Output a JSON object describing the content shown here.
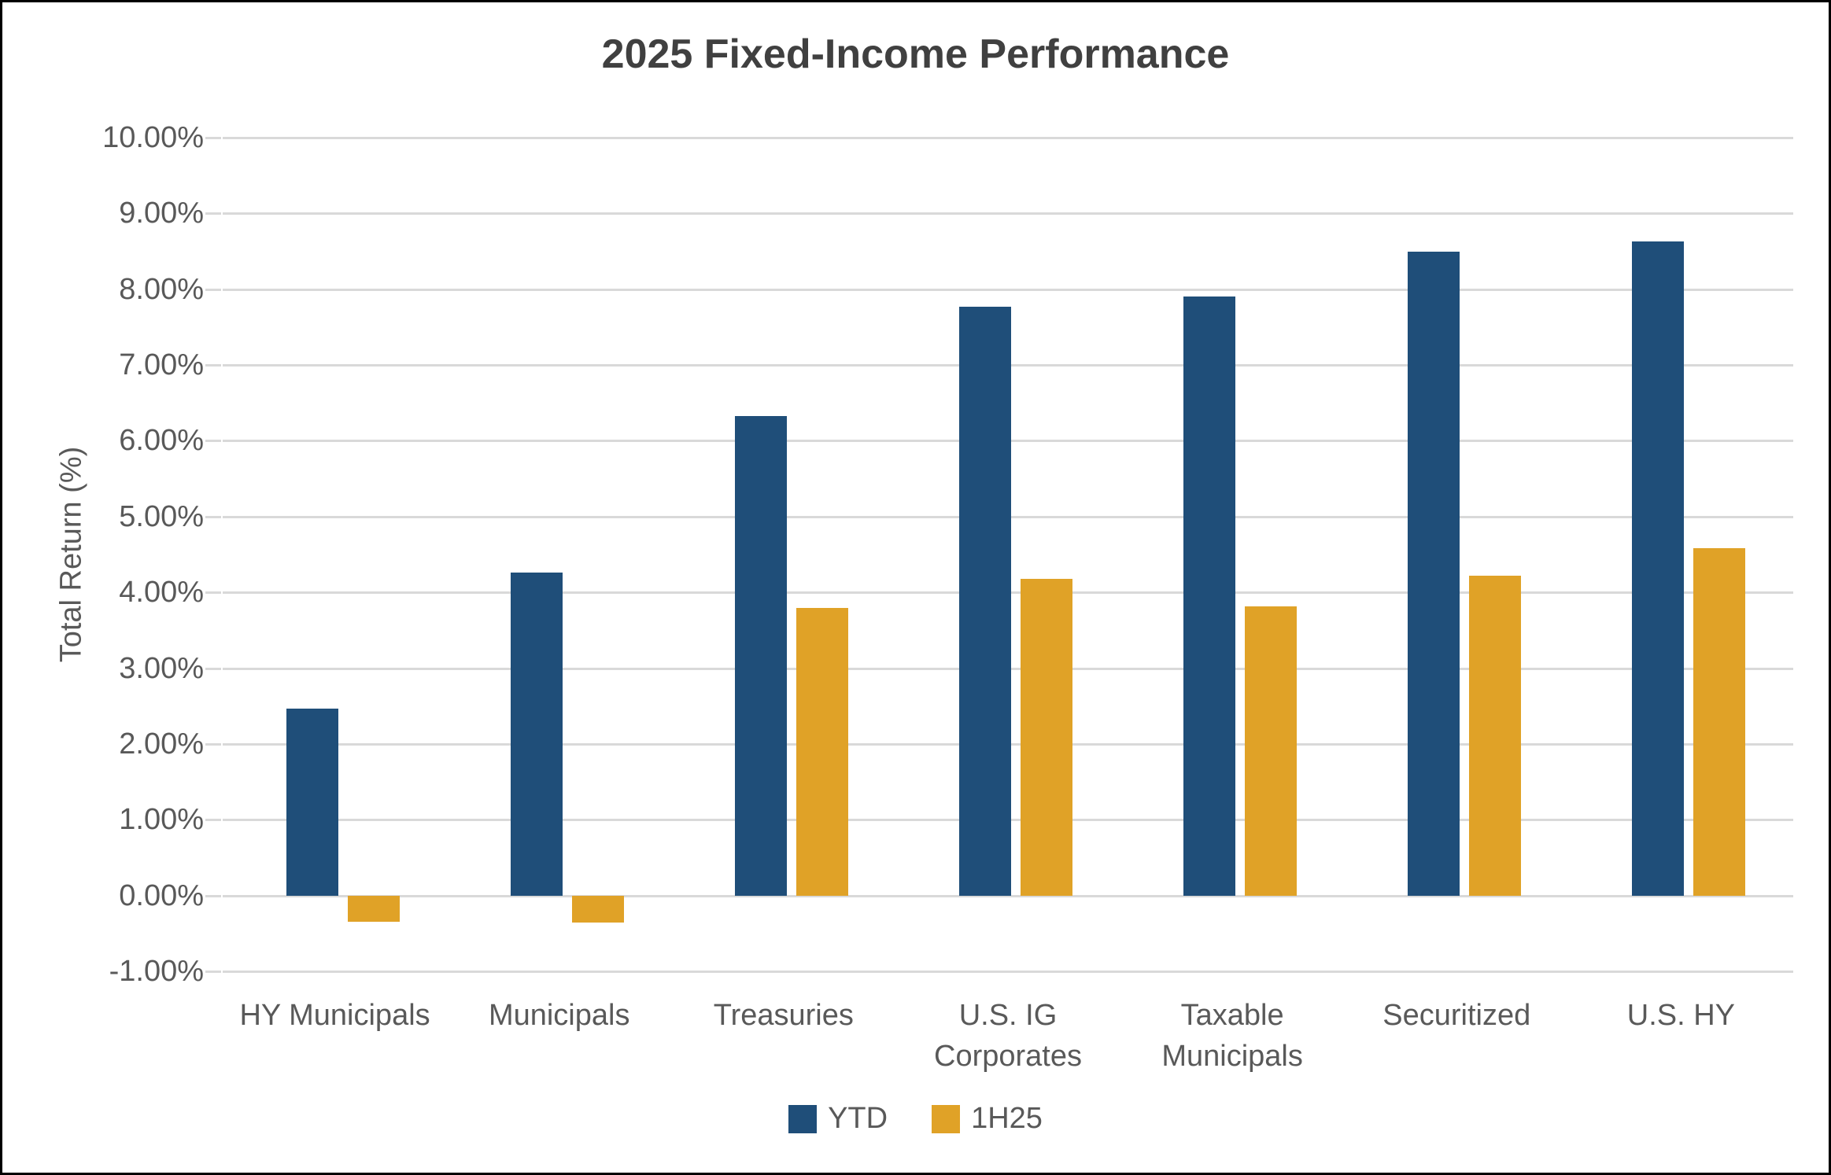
{
  "chart_data": {
    "type": "bar",
    "title": "2025 Fixed-Income Performance",
    "ylabel": "Total Return (%)",
    "xlabel": "",
    "ylim": [
      -1,
      10
    ],
    "ytick_step": 1,
    "ytick_format": "percent_2dp",
    "grid": true,
    "legend_position": "bottom",
    "categories": [
      "HY Municipals",
      "Municipals",
      "Treasuries",
      "U.S. IG Corporates",
      "Taxable Municipals",
      "Securitized",
      "U.S. HY"
    ],
    "category_label_lines": [
      [
        "HY Municipals"
      ],
      [
        "Municipals"
      ],
      [
        "Treasuries"
      ],
      [
        "U.S. IG",
        "Corporates"
      ],
      [
        "Taxable",
        "Municipals"
      ],
      [
        "Securitized"
      ],
      [
        "U.S. HY"
      ]
    ],
    "series": [
      {
        "name": "YTD",
        "color": "#1F4E79",
        "values": [
          2.47,
          4.26,
          6.33,
          7.77,
          7.9,
          8.5,
          8.63
        ]
      },
      {
        "name": "1H25",
        "color": "#E0A227",
        "values": [
          -0.35,
          -0.36,
          3.79,
          4.18,
          3.81,
          4.22,
          4.58
        ]
      }
    ]
  },
  "colors": {
    "gridline": "#D9D9D9",
    "axis_text": "#595959",
    "title_text": "#404040",
    "frame_border": "#000000"
  }
}
